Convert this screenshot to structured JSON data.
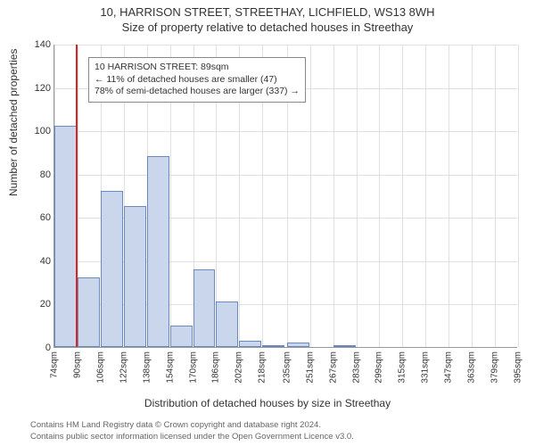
{
  "header": {
    "line1": "10, HARRISON STREET, STREETHAY, LICHFIELD, WS13 8WH",
    "line2": "Size of property relative to detached houses in Streethay"
  },
  "chart": {
    "type": "histogram",
    "ylabel": "Number of detached properties",
    "xlabel": "Distribution of detached houses by size in Streethay",
    "ylim": [
      0,
      140
    ],
    "ytick_step": 20,
    "yticks": [
      0,
      20,
      40,
      60,
      80,
      100,
      120,
      140
    ],
    "xticks": [
      "74sqm",
      "90sqm",
      "106sqm",
      "122sqm",
      "138sqm",
      "154sqm",
      "170sqm",
      "186sqm",
      "202sqm",
      "218sqm",
      "235sqm",
      "251sqm",
      "267sqm",
      "283sqm",
      "299sqm",
      "315sqm",
      "331sqm",
      "347sqm",
      "363sqm",
      "379sqm",
      "395sqm"
    ],
    "categories": [
      "74",
      "90",
      "106",
      "122",
      "138",
      "154",
      "170",
      "186",
      "202",
      "218",
      "235",
      "251",
      "267"
    ],
    "values": [
      102,
      32,
      72,
      65,
      88,
      10,
      36,
      21,
      3,
      1,
      2,
      0,
      1
    ],
    "bar_color": "#c9d6ec",
    "bar_border_color": "#6b89c0",
    "grid_color": "#e0e0e0",
    "background_color": "#ffffff",
    "marker_x_value": 89,
    "marker_color": "#d62728",
    "annotation": {
      "line1": "10 HARRISON STREET: 89sqm",
      "line2": "← 11% of detached houses are smaller (47)",
      "line3": "78% of semi-detached houses are larger (337) →"
    },
    "title_fontsize": 13,
    "label_fontsize": 12,
    "tick_fontsize": 11,
    "annotation_fontsize": 10.5
  },
  "footer": {
    "line1": "Contains HM Land Registry data © Crown copyright and database right 2024.",
    "line2": "Contains public sector information licensed under the Open Government Licence v3.0."
  }
}
